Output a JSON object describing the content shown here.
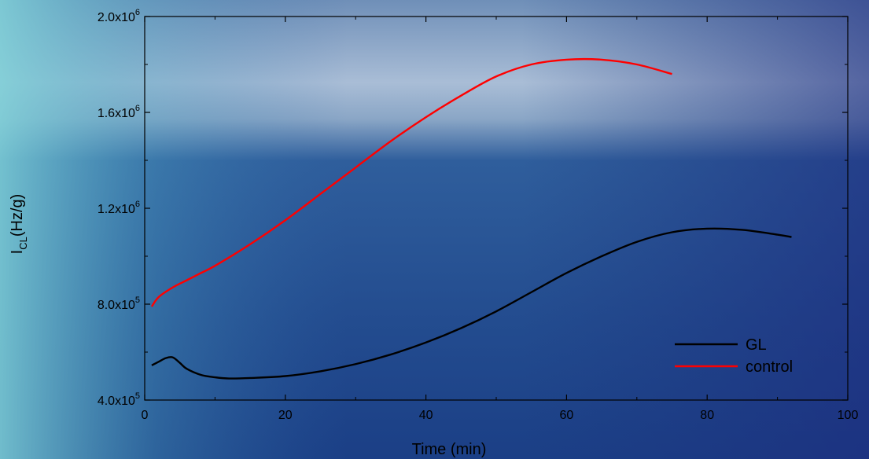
{
  "chart_data": {
    "type": "line",
    "xlabel": "Time (min)",
    "ylabel_main": "I",
    "ylabel_sub": "CL",
    "ylabel_unit": "(Hz/g)",
    "xlim": [
      0,
      100
    ],
    "ylim": [
      400000,
      2000000
    ],
    "x_ticks": [
      0,
      20,
      40,
      60,
      80,
      100
    ],
    "x_tick_labels": [
      "0",
      "20",
      "40",
      "60",
      "80",
      "100"
    ],
    "y_ticks": [
      400000,
      800000,
      1200000,
      1600000,
      2000000
    ],
    "y_tick_labels": [
      {
        "mantissa": "4.0x10",
        "exp": "5"
      },
      {
        "mantissa": "8.0x10",
        "exp": "5"
      },
      {
        "mantissa": "1.2x10",
        "exp": "6"
      },
      {
        "mantissa": "1.6x10",
        "exp": "6"
      },
      {
        "mantissa": "2.0x10",
        "exp": "6"
      }
    ],
    "grid": false,
    "legend_position": "bottom-right",
    "series": [
      {
        "name": "GL",
        "color": "#000000",
        "x": [
          1,
          2,
          3,
          4,
          5,
          6,
          8,
          10,
          12,
          15,
          20,
          25,
          30,
          35,
          40,
          45,
          50,
          55,
          60,
          65,
          70,
          75,
          80,
          85,
          90,
          92
        ],
        "y": [
          545000,
          560000,
          575000,
          578000,
          555000,
          530000,
          505000,
          495000,
          490000,
          492000,
          500000,
          520000,
          550000,
          590000,
          640000,
          700000,
          770000,
          850000,
          930000,
          1000000,
          1060000,
          1100000,
          1115000,
          1110000,
          1090000,
          1080000
        ]
      },
      {
        "name": "control",
        "color": "#ff0000",
        "x": [
          1,
          2,
          4,
          6,
          8,
          10,
          15,
          20,
          25,
          30,
          35,
          40,
          45,
          50,
          55,
          60,
          65,
          70,
          75
        ],
        "y": [
          790000,
          830000,
          870000,
          900000,
          930000,
          960000,
          1050000,
          1150000,
          1260000,
          1370000,
          1480000,
          1580000,
          1670000,
          1750000,
          1800000,
          1820000,
          1820000,
          1800000,
          1760000
        ]
      }
    ]
  }
}
